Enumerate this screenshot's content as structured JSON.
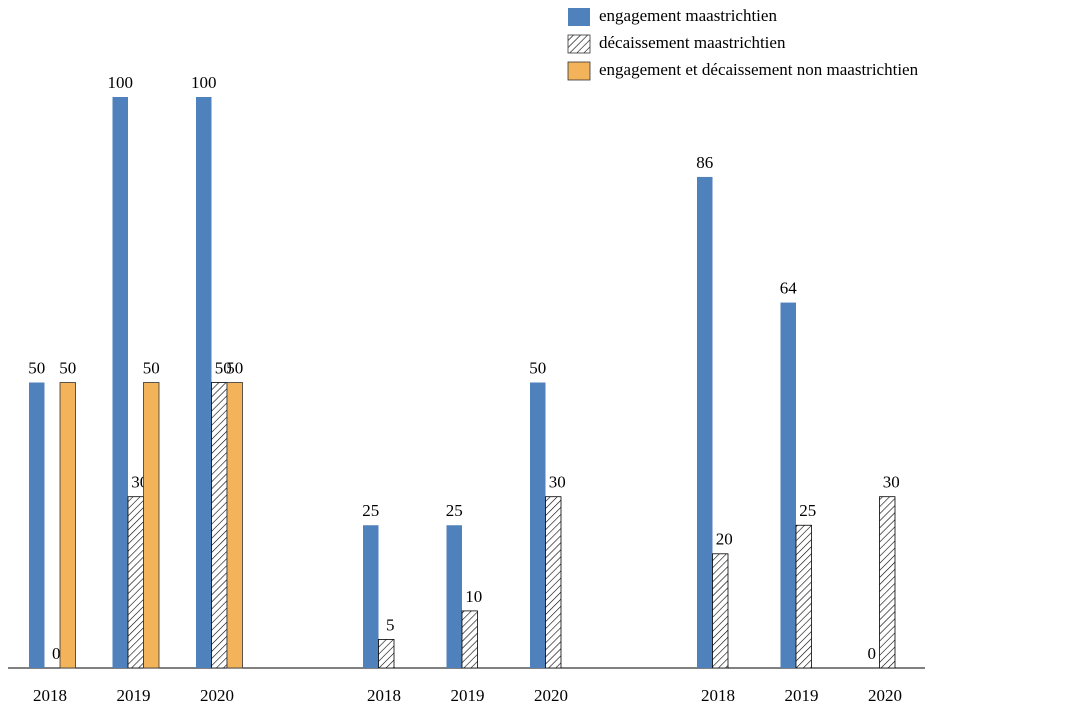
{
  "chart_data": {
    "type": "bar",
    "categories": [
      "2018",
      "2019",
      "2020",
      "2018",
      "2019",
      "2020",
      "2018",
      "2019",
      "2020"
    ],
    "series": [
      {
        "name": "engagement maastrichtien",
        "color": "#4f81bd",
        "values": [
          50,
          100,
          100,
          25,
          25,
          50,
          86,
          64,
          0
        ]
      },
      {
        "name": "décaissement maastrichtien",
        "color": "#000000",
        "hatch": true,
        "values": [
          0,
          30,
          50,
          5,
          10,
          30,
          20,
          25,
          30
        ]
      },
      {
        "name": "engagement et décaissement non maastrichtien",
        "color": "#f2b35b",
        "values": [
          50,
          50,
          50,
          null,
          null,
          null,
          null,
          null,
          null
        ]
      }
    ],
    "legend": "top-right"
  }
}
